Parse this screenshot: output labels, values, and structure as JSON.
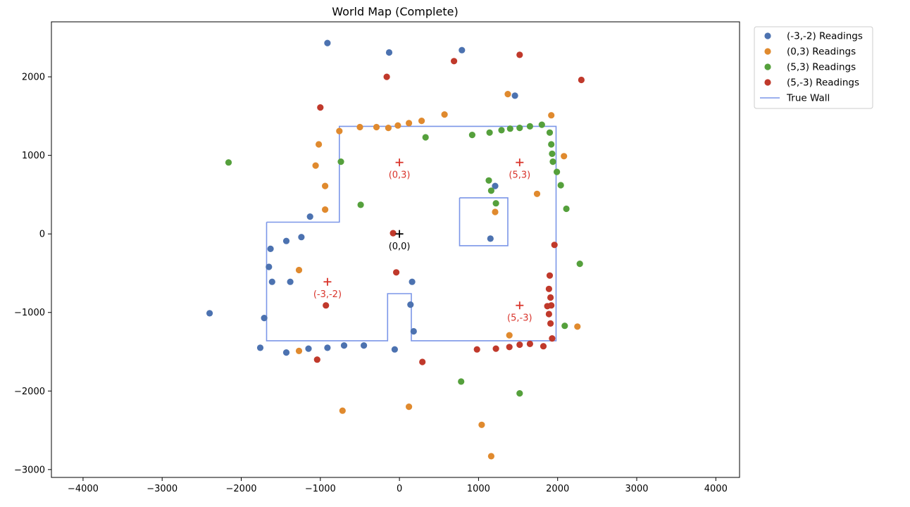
{
  "chart_data": {
    "type": "scatter",
    "title": "World Map (Complete)",
    "xlabel": "",
    "ylabel": "",
    "xlim": [
      -4400,
      4300
    ],
    "ylim": [
      -3100,
      2700
    ],
    "x_ticks": [
      -4000,
      -3000,
      -2000,
      -1000,
      0,
      1000,
      2000,
      3000,
      4000
    ],
    "y_ticks": [
      -3000,
      -2000,
      -1000,
      0,
      1000,
      2000
    ],
    "grid": false,
    "legend_position": "outside-top-right",
    "series": [
      {
        "name": "(-3,-2) Readings",
        "kind": "points",
        "color": "#4c72b0",
        "points": [
          [
            -910,
            2430
          ],
          [
            -130,
            2310
          ],
          [
            790,
            2340
          ],
          [
            1460,
            1760
          ],
          [
            1210,
            610
          ],
          [
            1150,
            -60
          ],
          [
            160,
            -610
          ],
          [
            140,
            -900
          ],
          [
            180,
            -1240
          ],
          [
            -60,
            -1470
          ],
          [
            -450,
            -1420
          ],
          [
            -700,
            -1420
          ],
          [
            -910,
            -1450
          ],
          [
            -1150,
            -1460
          ],
          [
            -1430,
            -1510
          ],
          [
            -1760,
            -1450
          ],
          [
            -1710,
            -1070
          ],
          [
            -2400,
            -1010
          ],
          [
            -1610,
            -610
          ],
          [
            -1380,
            -610
          ],
          [
            -1650,
            -420
          ],
          [
            -1630,
            -190
          ],
          [
            -1430,
            -90
          ],
          [
            -1240,
            -40
          ],
          [
            -1130,
            220
          ]
        ]
      },
      {
        "name": "(0,3) Readings",
        "kind": "points",
        "color": "#e08a2e",
        "points": [
          [
            -1020,
            1140
          ],
          [
            -1060,
            870
          ],
          [
            -940,
            610
          ],
          [
            -940,
            310
          ],
          [
            -1270,
            -460
          ],
          [
            -1270,
            -1490
          ],
          [
            -760,
            1310
          ],
          [
            -500,
            1360
          ],
          [
            -290,
            1360
          ],
          [
            -140,
            1350
          ],
          [
            -20,
            1380
          ],
          [
            120,
            1410
          ],
          [
            280,
            1440
          ],
          [
            570,
            1520
          ],
          [
            1370,
            1780
          ],
          [
            1920,
            1510
          ],
          [
            2080,
            990
          ],
          [
            1740,
            510
          ],
          [
            1210,
            280
          ],
          [
            1390,
            -1290
          ],
          [
            2250,
            -1180
          ],
          [
            -720,
            -2250
          ],
          [
            120,
            -2200
          ],
          [
            1040,
            -2430
          ],
          [
            1160,
            -2830
          ]
        ]
      },
      {
        "name": "(5,3) Readings",
        "kind": "points",
        "color": "#55a03c",
        "points": [
          [
            -2160,
            910
          ],
          [
            -740,
            920
          ],
          [
            -490,
            370
          ],
          [
            330,
            1230
          ],
          [
            920,
            1260
          ],
          [
            1140,
            1290
          ],
          [
            1290,
            1320
          ],
          [
            1400,
            1340
          ],
          [
            1520,
            1350
          ],
          [
            1650,
            1370
          ],
          [
            1800,
            1390
          ],
          [
            1900,
            1290
          ],
          [
            1920,
            1140
          ],
          [
            1930,
            1020
          ],
          [
            1940,
            920
          ],
          [
            1990,
            790
          ],
          [
            2040,
            620
          ],
          [
            2110,
            320
          ],
          [
            1130,
            680
          ],
          [
            1160,
            550
          ],
          [
            1220,
            390
          ],
          [
            2280,
            -380
          ],
          [
            2090,
            -1170
          ],
          [
            780,
            -1880
          ],
          [
            1520,
            -2030
          ]
        ]
      },
      {
        "name": "(5,-3) Readings",
        "kind": "points",
        "color": "#c0392b",
        "points": [
          [
            1520,
            2280
          ],
          [
            2300,
            1960
          ],
          [
            690,
            2200
          ],
          [
            -160,
            2000
          ],
          [
            -1000,
            1610
          ],
          [
            -80,
            10
          ],
          [
            -40,
            -490
          ],
          [
            -930,
            -910
          ],
          [
            1960,
            -140
          ],
          [
            1900,
            -530
          ],
          [
            1890,
            -700
          ],
          [
            1910,
            -810
          ],
          [
            1920,
            -910
          ],
          [
            1870,
            -920
          ],
          [
            1890,
            -1020
          ],
          [
            1910,
            -1140
          ],
          [
            1930,
            -1330
          ],
          [
            1820,
            -1430
          ],
          [
            1650,
            -1400
          ],
          [
            1520,
            -1410
          ],
          [
            1390,
            -1440
          ],
          [
            1220,
            -1460
          ],
          [
            980,
            -1470
          ],
          [
            290,
            -1630
          ],
          [
            -1040,
            -1600
          ]
        ]
      },
      {
        "name": "True Wall",
        "kind": "path",
        "color": "#7b96e8",
        "paths": [
          [
            [
              -1680,
              150
            ],
            [
              -760,
              150
            ],
            [
              -760,
              1370
            ],
            [
              1980,
              1370
            ],
            [
              1980,
              -1360
            ],
            [
              150,
              -1360
            ],
            [
              150,
              -760
            ],
            [
              -150,
              -760
            ],
            [
              -150,
              -1360
            ],
            [
              -1680,
              -1360
            ],
            [
              -1680,
              150
            ]
          ],
          [
            [
              760,
              460
            ],
            [
              1370,
              460
            ],
            [
              1370,
              -150
            ],
            [
              760,
              -150
            ],
            [
              760,
              460
            ]
          ]
        ]
      }
    ],
    "annotations": [
      {
        "label": "(0,3)",
        "x": 0,
        "y": 910,
        "color": "#d9342b"
      },
      {
        "label": "(5,3)",
        "x": 1520,
        "y": 910,
        "color": "#d9342b"
      },
      {
        "label": "(0,0)",
        "x": 0,
        "y": 0,
        "color": "#000000"
      },
      {
        "label": "(-3,-2)",
        "x": -910,
        "y": -610,
        "color": "#d9342b"
      },
      {
        "label": "(5,-3)",
        "x": 1520,
        "y": -910,
        "color": "#d9342b"
      }
    ]
  }
}
